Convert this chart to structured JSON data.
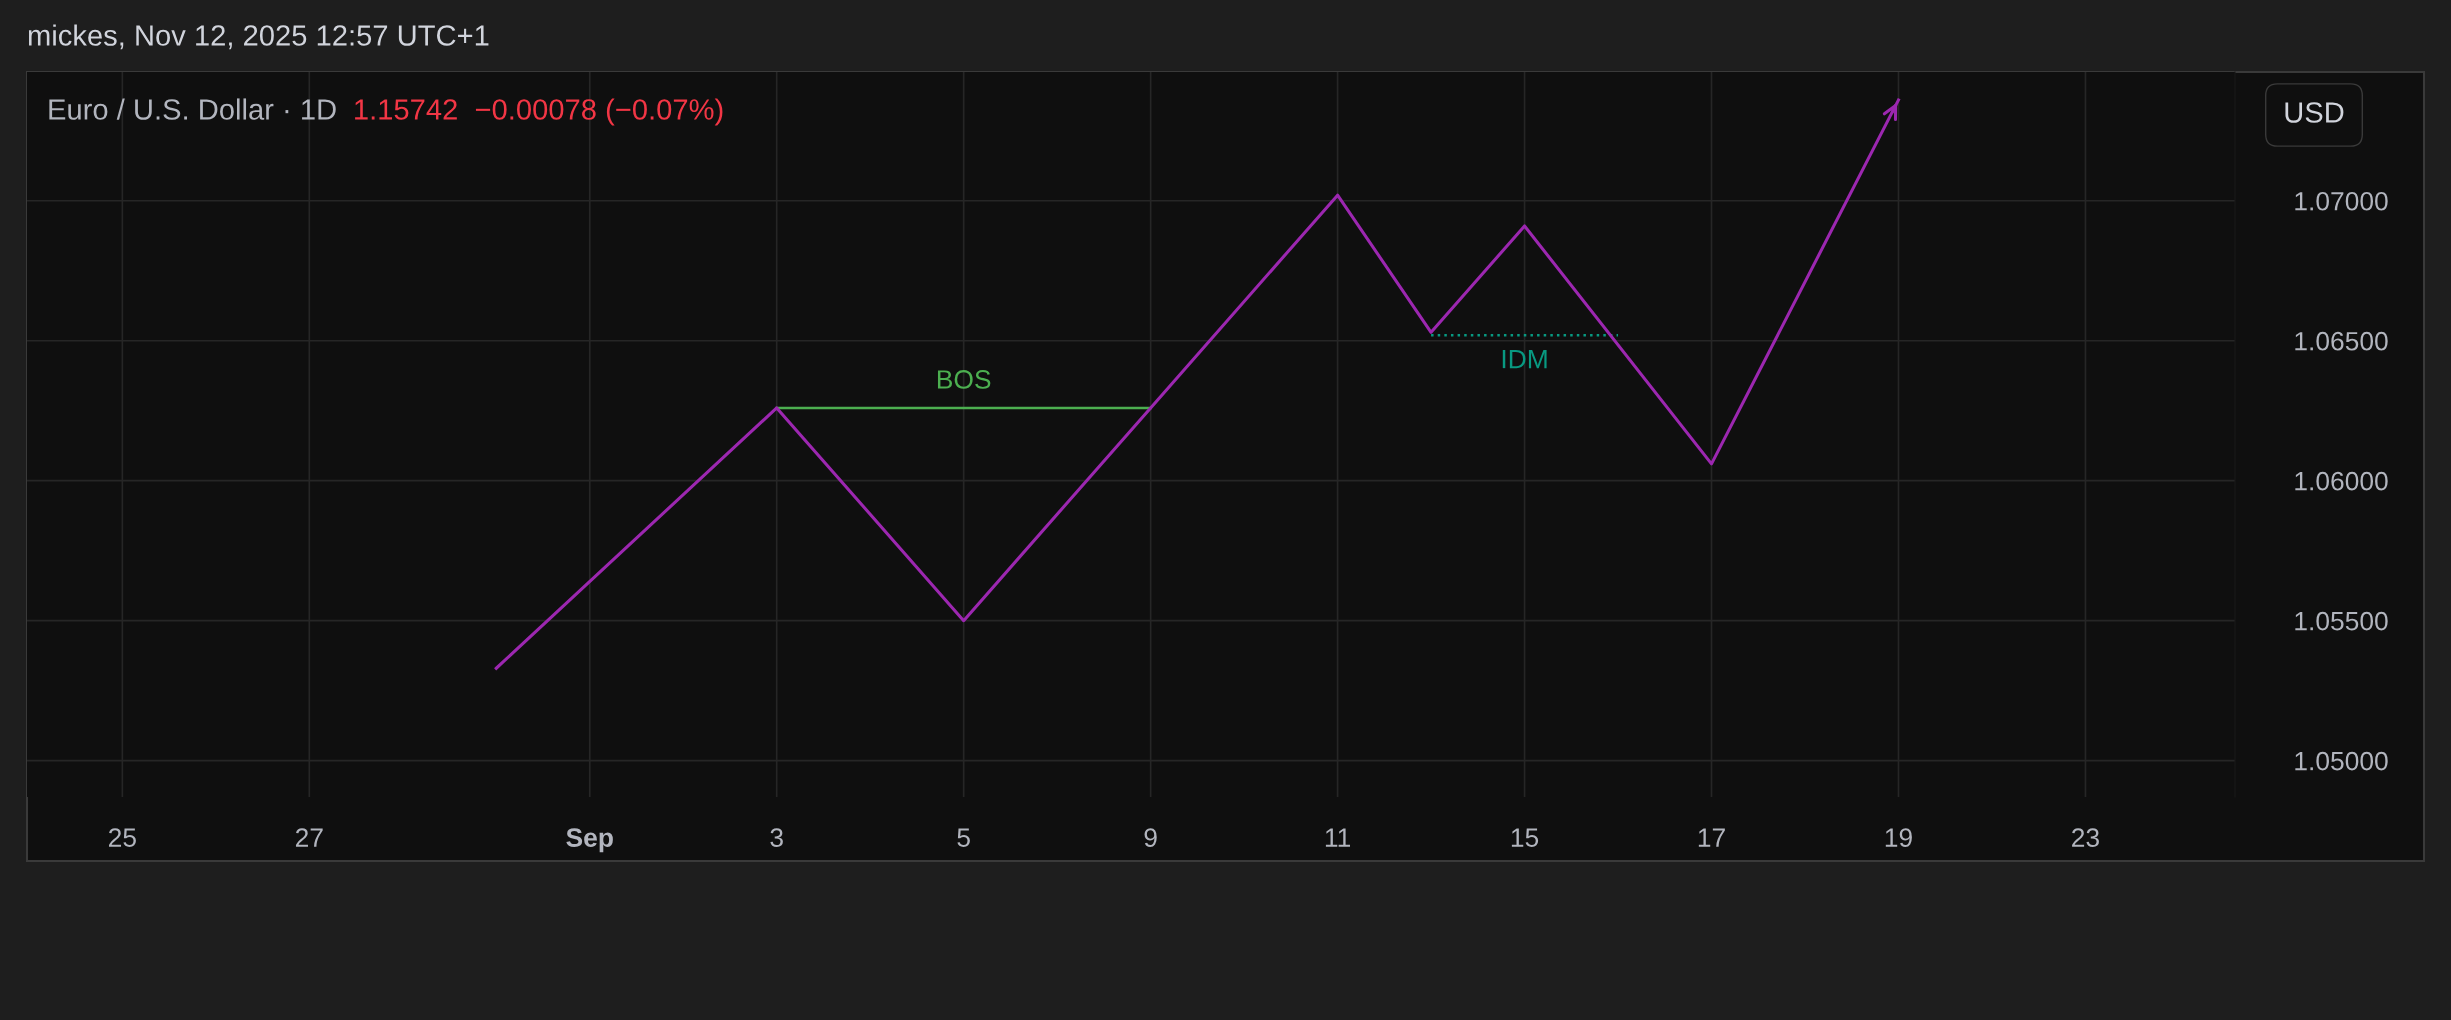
{
  "chart_data": {
    "type": "line",
    "title": "Euro / U.S. Dollar · 1D",
    "subtitle": "1.15742  −0.00078 (−0.07%)",
    "ylabel": "USD",
    "annotations": [
      "mickes, Nov 12, 2025 12:57 UTC+1"
    ],
    "categories": [
      "25",
      null,
      "27",
      null,
      null,
      "Sep",
      null,
      "3",
      null,
      "5",
      null,
      "9",
      null,
      "11",
      null,
      "15",
      null,
      "17",
      null,
      "19",
      null,
      "23"
    ],
    "series": [
      {
        "color": "#9c27b0",
        "values": [
          null,
          null,
          null,
          null,
          1.0533,
          null,
          null,
          1.0626,
          null,
          1.055,
          null,
          1.0626,
          null,
          1.0702,
          1.0653,
          1.0691,
          null,
          1.0606,
          null,
          1.0736,
          null,
          null
        ]
      },
      {
        "name": "BOS",
        "color": "#4caf50",
        "values": [
          null,
          null,
          null,
          null,
          null,
          null,
          null,
          1.0626,
          1.0626,
          1.0626,
          1.0626,
          1.0626,
          null,
          null,
          null,
          null,
          null,
          null,
          null,
          null,
          null,
          null
        ]
      },
      {
        "name": "IDM",
        "color": "#089981",
        "line_style": "dotted",
        "values": [
          null,
          null,
          null,
          null,
          null,
          null,
          null,
          null,
          null,
          null,
          null,
          null,
          null,
          null,
          1.0652,
          1.0652,
          1.0652,
          null,
          null,
          null,
          null,
          null
        ]
      }
    ],
    "ylim": [
      1.0487,
      1.0746
    ],
    "yticks": [
      {
        "value": 1.05,
        "label": "1.05000"
      },
      {
        "value": 1.055,
        "label": "1.05500"
      },
      {
        "value": 1.06,
        "label": "1.06000"
      },
      {
        "value": 1.065,
        "label": "1.06500"
      },
      {
        "value": 1.07,
        "label": "1.07000"
      }
    ],
    "grid": true,
    "marker": "none",
    "line_style": "solid"
  }
}
